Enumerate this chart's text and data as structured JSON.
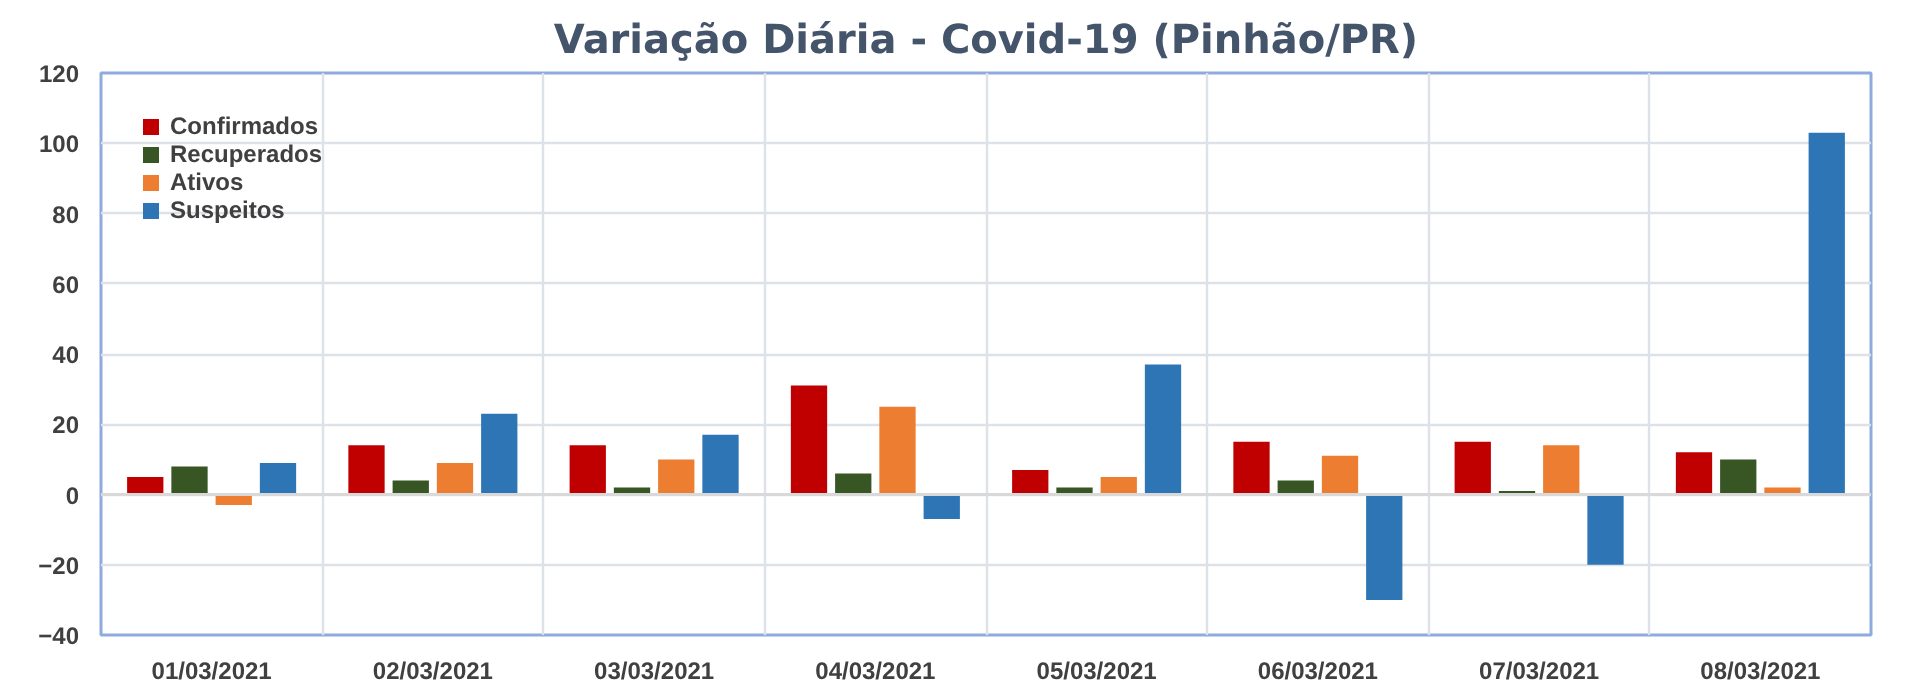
{
  "chart_data": {
    "type": "bar",
    "title": "Variação Diária - Covid-19 (Pinhão/PR)",
    "categories": [
      "01/03/2021",
      "02/03/2021",
      "03/03/2021",
      "04/03/2021",
      "05/03/2021",
      "06/03/2021",
      "07/03/2021",
      "08/03/2021"
    ],
    "series": [
      {
        "name": "Confirmados",
        "color": "#c00000",
        "values": [
          5,
          14,
          14,
          31,
          7,
          15,
          15,
          12
        ]
      },
      {
        "name": "Recuperados",
        "color": "#375623",
        "values": [
          8,
          4,
          2,
          6,
          2,
          4,
          1,
          10
        ]
      },
      {
        "name": "Ativos",
        "color": "#ed7d31",
        "values": [
          -3,
          9,
          10,
          25,
          5,
          11,
          14,
          2
        ]
      },
      {
        "name": "Suspeitos",
        "color": "#2e75b6",
        "values": [
          9,
          23,
          17,
          -7,
          37,
          -30,
          -20,
          103
        ]
      }
    ],
    "ylim": [
      -40,
      120
    ],
    "yticks": [
      -40,
      -20,
      0,
      20,
      40,
      60,
      80,
      100,
      120
    ],
    "grid": true,
    "legend": "top left"
  }
}
